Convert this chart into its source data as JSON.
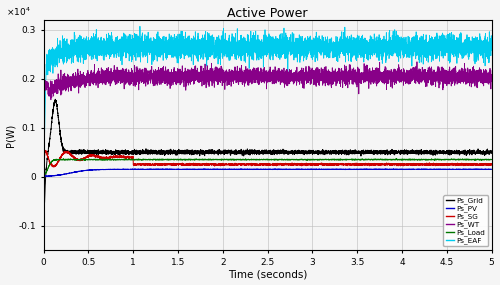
{
  "title": "Active Power",
  "xlabel": "Time (seconds)",
  "ylabel": "P(W)",
  "xlim": [
    0,
    5
  ],
  "ylim": [
    -0.15,
    0.32
  ],
  "yticks": [
    -0.1,
    0,
    0.1,
    0.2,
    0.3
  ],
  "ytick_labels": [
    "-0.1",
    "0",
    "0.1",
    "0.2",
    "0.3"
  ],
  "xticks": [
    0,
    0.5,
    1,
    1.5,
    2,
    2.5,
    3,
    3.5,
    4,
    4.5,
    5
  ],
  "xtick_labels": [
    "0",
    "0.5",
    "1",
    "1.5",
    "2",
    "2.5",
    "3",
    "3.5",
    "4",
    "4.5",
    "5"
  ],
  "legend_entries": [
    "Ps_Grid",
    "Ps_PV",
    "Ps_SG",
    "Ps_WT",
    "Ps_Load",
    "Ps_EAF"
  ],
  "line_colors": {
    "Ps_Grid": "#000000",
    "Ps_PV": "#0000cc",
    "Ps_SG": "#cc0000",
    "Ps_WT": "#880088",
    "Ps_Load": "#007700",
    "Ps_EAF": "#00ccee"
  },
  "noise_seed": 42,
  "bg_color": "#f0f0f0"
}
